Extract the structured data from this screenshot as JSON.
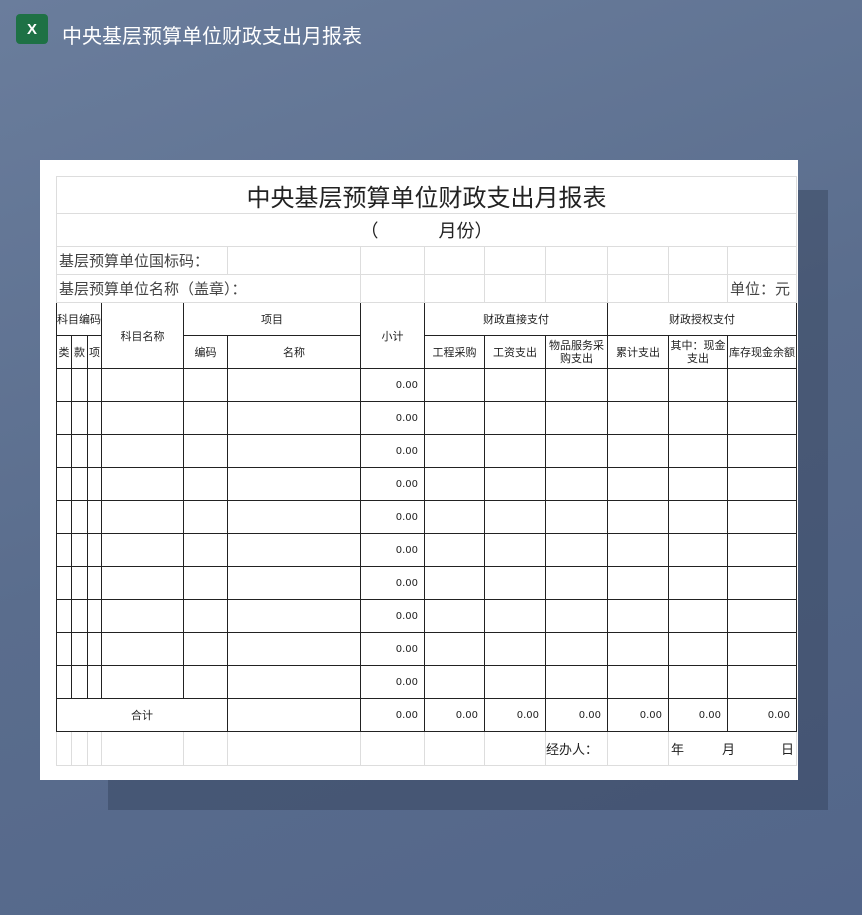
{
  "app": {
    "title": "中央基层预算单位财政支出月报表",
    "icon": "excel-icon",
    "icon_letter": "X"
  },
  "sheet": {
    "title": "中央基层预算单位财政支出月报表",
    "subtitle_open": "（",
    "subtitle_month": "月份）",
    "code_label": "基层预算单位国标码：",
    "name_label": "基层预算单位名称（盖章）：",
    "unit_label": "单位：元",
    "headers": {
      "subject_code": "科目编码",
      "lei": "类",
      "kuan": "款",
      "xiang": "项",
      "subject_name": "科目名称",
      "project": "项目",
      "project_code": "编码",
      "project_name": "名称",
      "subtotal": "小计",
      "direct": "财政直接支付",
      "engineering": "工程采购",
      "salary": "工资支出",
      "goods": "物品服务采购支出",
      "authorized": "财政授权支付",
      "cumulative": "累计支出",
      "cash": "其中：现金支出",
      "stock": "库存现金余额"
    },
    "row_subtotals": [
      "0.00",
      "0.00",
      "0.00",
      "0.00",
      "0.00",
      "0.00",
      "0.00",
      "0.00",
      "0.00",
      "0.00"
    ],
    "total_label": "合计",
    "totals": [
      "0.00",
      "0.00",
      "0.00",
      "0.00",
      "0.00",
      "0.00",
      "0.00"
    ],
    "handler_label": "经办人：",
    "year": "年",
    "month": "月",
    "day": "日"
  }
}
